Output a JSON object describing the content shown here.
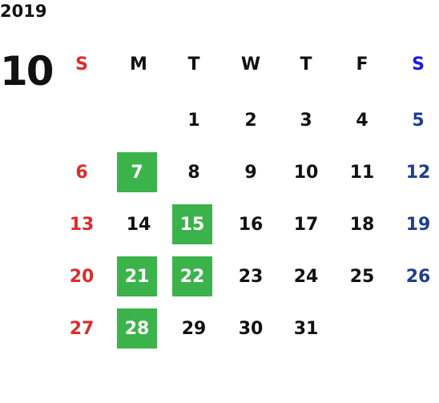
{
  "year": "2019",
  "month": "10",
  "weekdays": [
    "S",
    "M",
    "T",
    "W",
    "T",
    "F",
    "S"
  ],
  "weeks": [
    [
      null,
      null,
      {
        "day": 1
      },
      {
        "day": 2
      },
      {
        "day": 3
      },
      {
        "day": 4
      },
      {
        "day": 5
      }
    ],
    [
      {
        "day": 6
      },
      {
        "day": 7,
        "highlighted": true
      },
      {
        "day": 8
      },
      {
        "day": 9
      },
      {
        "day": 10
      },
      {
        "day": 11
      },
      {
        "day": 12
      }
    ],
    [
      {
        "day": 13
      },
      {
        "day": 14
      },
      {
        "day": 15,
        "highlighted": true
      },
      {
        "day": 16
      },
      {
        "day": 17
      },
      {
        "day": 18
      },
      {
        "day": 19
      }
    ],
    [
      {
        "day": 20
      },
      {
        "day": 21,
        "highlighted": true
      },
      {
        "day": 22,
        "highlighted": true
      },
      {
        "day": 23
      },
      {
        "day": 24
      },
      {
        "day": 25
      },
      {
        "day": 26
      }
    ],
    [
      {
        "day": 27
      },
      {
        "day": 28,
        "highlighted": true
      },
      {
        "day": 29
      },
      {
        "day": 30
      },
      {
        "day": 31
      },
      null,
      null
    ]
  ],
  "highlight_color": "#3bb34a"
}
